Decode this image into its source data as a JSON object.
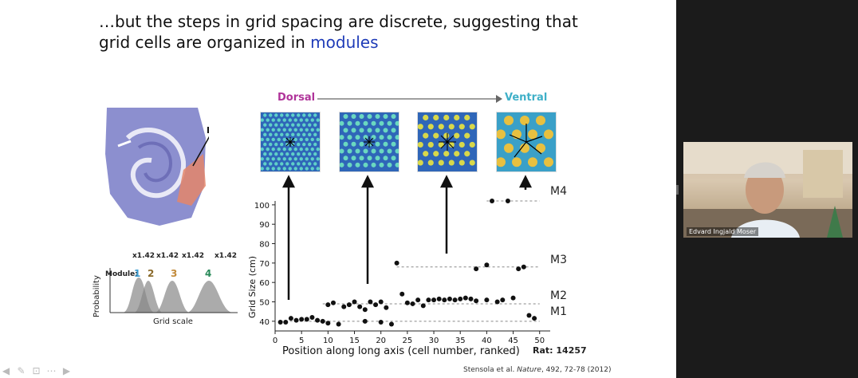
{
  "slide": {
    "title_part1": "…but the steps in grid spacing are discrete, suggesting that",
    "title_part2": "grid cells are organized in ",
    "title_highlight": "modules",
    "dorsal": "Dorsal",
    "ventral": "Ventral",
    "citation_authors": "Stensola et al. ",
    "citation_journal": "Nature",
    "citation_ref": ", 492, 72-78 (2012)",
    "rat": "Rat: 14257"
  },
  "module_legend": {
    "ratios": [
      "x1.42",
      "x1.42",
      "x1.42",
      "x1.42"
    ],
    "module_label": "Module:",
    "modules": [
      "1",
      "2",
      "3",
      "4"
    ],
    "module_colors": [
      "#3b9bd0",
      "#8a6a2a",
      "#c28a3a",
      "#2a8a5a"
    ],
    "ylabel": "Probability",
    "xlabel": "Grid scale"
  },
  "chart_data": {
    "type": "scatter",
    "xlabel": "Position along long axis (cell number, ranked)",
    "ylabel": "Grid Size (cm)",
    "xlim": [
      0,
      52
    ],
    "ylim": [
      35,
      102
    ],
    "xticks": [
      0,
      5,
      10,
      15,
      20,
      25,
      30,
      35,
      40,
      45,
      50
    ],
    "yticks": [
      40,
      50,
      60,
      70,
      80,
      90,
      100
    ],
    "modules": [
      {
        "name": "M1",
        "y": 40,
        "x_range": [
          1,
          50
        ]
      },
      {
        "name": "M2",
        "y": 49,
        "x_range": [
          9,
          50
        ]
      },
      {
        "name": "M3",
        "y": 68,
        "x_range": [
          23,
          50
        ]
      },
      {
        "name": "M4",
        "y": 102,
        "x_range": [
          40,
          50
        ]
      }
    ],
    "points": [
      [
        1,
        39.5
      ],
      [
        2,
        39.5
      ],
      [
        3,
        41.5
      ],
      [
        4,
        40.5
      ],
      [
        5,
        41
      ],
      [
        6,
        41
      ],
      [
        7,
        42
      ],
      [
        8,
        40.5
      ],
      [
        9,
        40
      ],
      [
        10,
        39
      ],
      [
        12,
        38.5
      ],
      [
        17,
        40
      ],
      [
        20,
        39.5
      ],
      [
        22,
        38.5
      ],
      [
        48,
        43
      ],
      [
        49,
        41.5
      ],
      [
        10,
        48.5
      ],
      [
        11,
        49.5
      ],
      [
        13,
        47.5
      ],
      [
        14,
        48.5
      ],
      [
        15,
        50
      ],
      [
        16,
        47.5
      ],
      [
        17,
        46
      ],
      [
        18,
        50
      ],
      [
        19,
        48.5
      ],
      [
        20,
        50
      ],
      [
        21,
        47
      ],
      [
        24,
        54
      ],
      [
        25,
        49.5
      ],
      [
        26,
        49
      ],
      [
        27,
        51
      ],
      [
        28,
        48
      ],
      [
        29,
        51
      ],
      [
        30,
        51
      ],
      [
        31,
        51.5
      ],
      [
        32,
        51
      ],
      [
        33,
        51.5
      ],
      [
        34,
        51
      ],
      [
        35,
        51.5
      ],
      [
        36,
        52
      ],
      [
        37,
        51.5
      ],
      [
        38,
        50.5
      ],
      [
        40,
        51
      ],
      [
        42,
        50
      ],
      [
        43,
        51
      ],
      [
        45,
        52
      ],
      [
        23,
        70
      ],
      [
        38,
        67
      ],
      [
        40,
        69
      ],
      [
        46,
        67
      ],
      [
        47,
        68
      ],
      [
        41,
        102
      ],
      [
        44,
        102
      ]
    ]
  }
}
